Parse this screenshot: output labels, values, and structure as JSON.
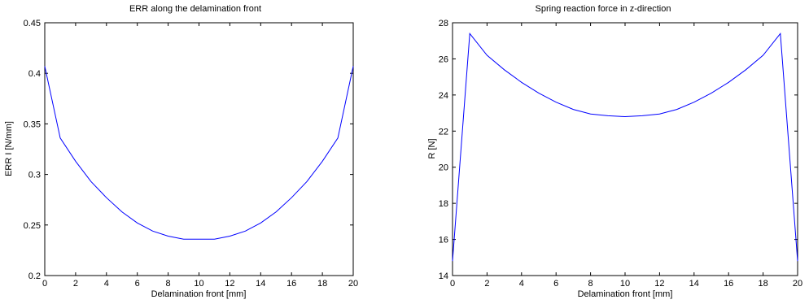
{
  "chart_data": [
    {
      "type": "line",
      "title": "ERR along the delamination front",
      "xlabel": "Delamination front [mm]",
      "ylabel": "ERR I [N/mm]",
      "xlim": [
        0,
        20
      ],
      "ylim": [
        0.2,
        0.45
      ],
      "xticks": [
        "0",
        "2",
        "4",
        "6",
        "8",
        "10",
        "12",
        "14",
        "16",
        "18",
        "20"
      ],
      "yticks": [
        "0.2",
        "0.25",
        "0.3",
        "0.35",
        "0.4",
        "0.45"
      ],
      "grid": false,
      "line_color": "#0000ff",
      "x": [
        0,
        1,
        2,
        3,
        4,
        5,
        6,
        7,
        8,
        9,
        10,
        11,
        12,
        13,
        14,
        15,
        16,
        17,
        18,
        19,
        20
      ],
      "y": [
        0.407,
        0.336,
        0.313,
        0.293,
        0.277,
        0.263,
        0.252,
        0.244,
        0.239,
        0.236,
        0.236,
        0.236,
        0.239,
        0.244,
        0.252,
        0.263,
        0.277,
        0.293,
        0.313,
        0.336,
        0.407
      ]
    },
    {
      "type": "line",
      "title": "Spring reaction force in z-direction",
      "xlabel": "Delamination front [mm]",
      "ylabel": "R [N]",
      "xlim": [
        0,
        20
      ],
      "ylim": [
        14,
        28
      ],
      "xticks": [
        "0",
        "2",
        "4",
        "6",
        "8",
        "10",
        "12",
        "14",
        "16",
        "18",
        "20"
      ],
      "yticks": [
        "14",
        "16",
        "18",
        "20",
        "22",
        "24",
        "26",
        "28"
      ],
      "grid": false,
      "line_color": "#0000ff",
      "x": [
        0,
        1,
        2,
        3,
        4,
        5,
        6,
        7,
        8,
        9,
        10,
        11,
        12,
        13,
        14,
        15,
        16,
        17,
        18,
        19,
        20
      ],
      "y": [
        14.8,
        27.4,
        26.2,
        25.4,
        24.7,
        24.1,
        23.6,
        23.2,
        22.95,
        22.85,
        22.8,
        22.85,
        22.95,
        23.2,
        23.6,
        24.1,
        24.7,
        25.4,
        26.2,
        27.4,
        14.8
      ]
    }
  ]
}
